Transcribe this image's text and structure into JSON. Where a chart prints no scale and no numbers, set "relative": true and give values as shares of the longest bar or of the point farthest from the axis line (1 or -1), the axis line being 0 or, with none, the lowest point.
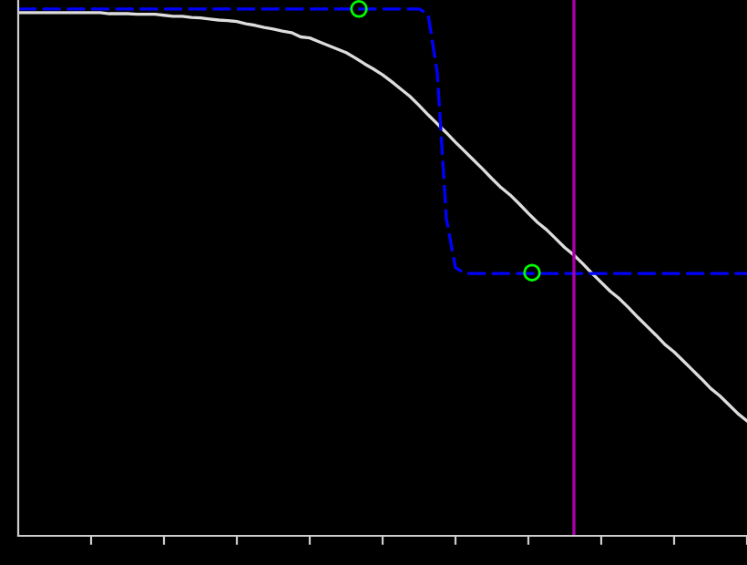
{
  "chart_data": {
    "type": "line",
    "relative": true,
    "grid": false,
    "legend": false,
    "tick_labels": false,
    "categories": [
      null,
      null,
      null,
      null,
      null,
      null,
      null,
      null,
      null,
      null,
      null,
      null,
      null,
      null,
      null,
      null,
      null,
      null,
      null,
      null,
      null,
      null,
      null,
      null,
      null,
      null,
      null,
      null,
      null,
      null,
      null,
      null,
      null,
      null,
      null,
      null,
      null,
      null,
      null,
      null,
      null,
      null,
      null,
      null,
      null,
      null,
      null,
      null,
      null,
      null,
      null,
      null,
      null,
      null,
      null,
      null,
      null,
      null,
      null,
      null,
      null,
      null,
      null,
      null,
      null,
      null,
      null,
      null,
      null,
      null,
      null,
      null,
      null,
      null,
      null,
      null,
      null,
      null,
      null,
      null,
      null
    ],
    "series": [
      {
        "color": "#dddddd",
        "line_style": "solid",
        "marker": "none",
        "values": [
          0.993,
          0.993,
          0.993,
          0.993,
          0.993,
          0.993,
          0.993,
          0.993,
          0.993,
          0.993,
          0.991,
          0.991,
          0.991,
          0.99,
          0.99,
          0.99,
          0.988,
          0.986,
          0.986,
          0.984,
          0.983,
          0.981,
          0.979,
          0.978,
          0.976,
          0.972,
          0.969,
          0.965,
          0.962,
          0.958,
          0.955,
          0.947,
          0.945,
          0.938,
          0.931,
          0.924,
          0.917,
          0.907,
          0.896,
          0.886,
          0.875,
          0.862,
          0.848,
          0.834,
          0.817,
          0.799,
          0.782,
          0.765,
          0.747,
          0.73,
          0.713,
          0.696,
          0.678,
          0.661,
          0.647,
          0.63,
          0.612,
          0.595,
          0.581,
          0.564,
          0.547,
          0.533,
          0.516,
          0.498,
          0.481,
          0.464,
          0.45,
          0.433,
          0.415,
          0.398,
          0.381,
          0.363,
          0.349,
          0.332,
          0.315,
          0.298,
          0.28,
          0.266,
          0.249,
          0.232,
          0.218
        ]
      },
      {
        "type": "line",
        "color": "#0000ff",
        "line_style": "dashed",
        "marker": "none",
        "values": [
          1,
          1,
          1,
          1,
          1,
          1,
          1,
          1,
          1,
          1,
          1,
          1,
          1,
          1,
          1,
          1,
          1,
          1,
          1,
          1,
          1,
          1,
          1,
          1,
          1,
          1,
          1,
          1,
          1,
          1,
          1,
          1,
          1,
          1,
          1,
          1,
          1,
          1,
          1,
          1,
          1,
          1,
          1,
          1,
          1,
          0.99,
          0.879,
          0.602,
          0.509,
          0.498,
          0.498,
          0.498,
          0.498,
          0.498,
          0.498,
          0.498,
          0.498,
          0.498,
          0.498,
          0.498,
          0.498,
          0.498,
          0.498,
          0.498,
          0.498,
          0.498,
          0.498,
          0.498,
          0.498,
          0.498,
          0.498,
          0.498,
          0.498,
          0.498,
          0.498,
          0.498,
          0.498,
          0.498,
          0.498,
          0.498,
          0.498
        ]
      }
    ]
  }
}
